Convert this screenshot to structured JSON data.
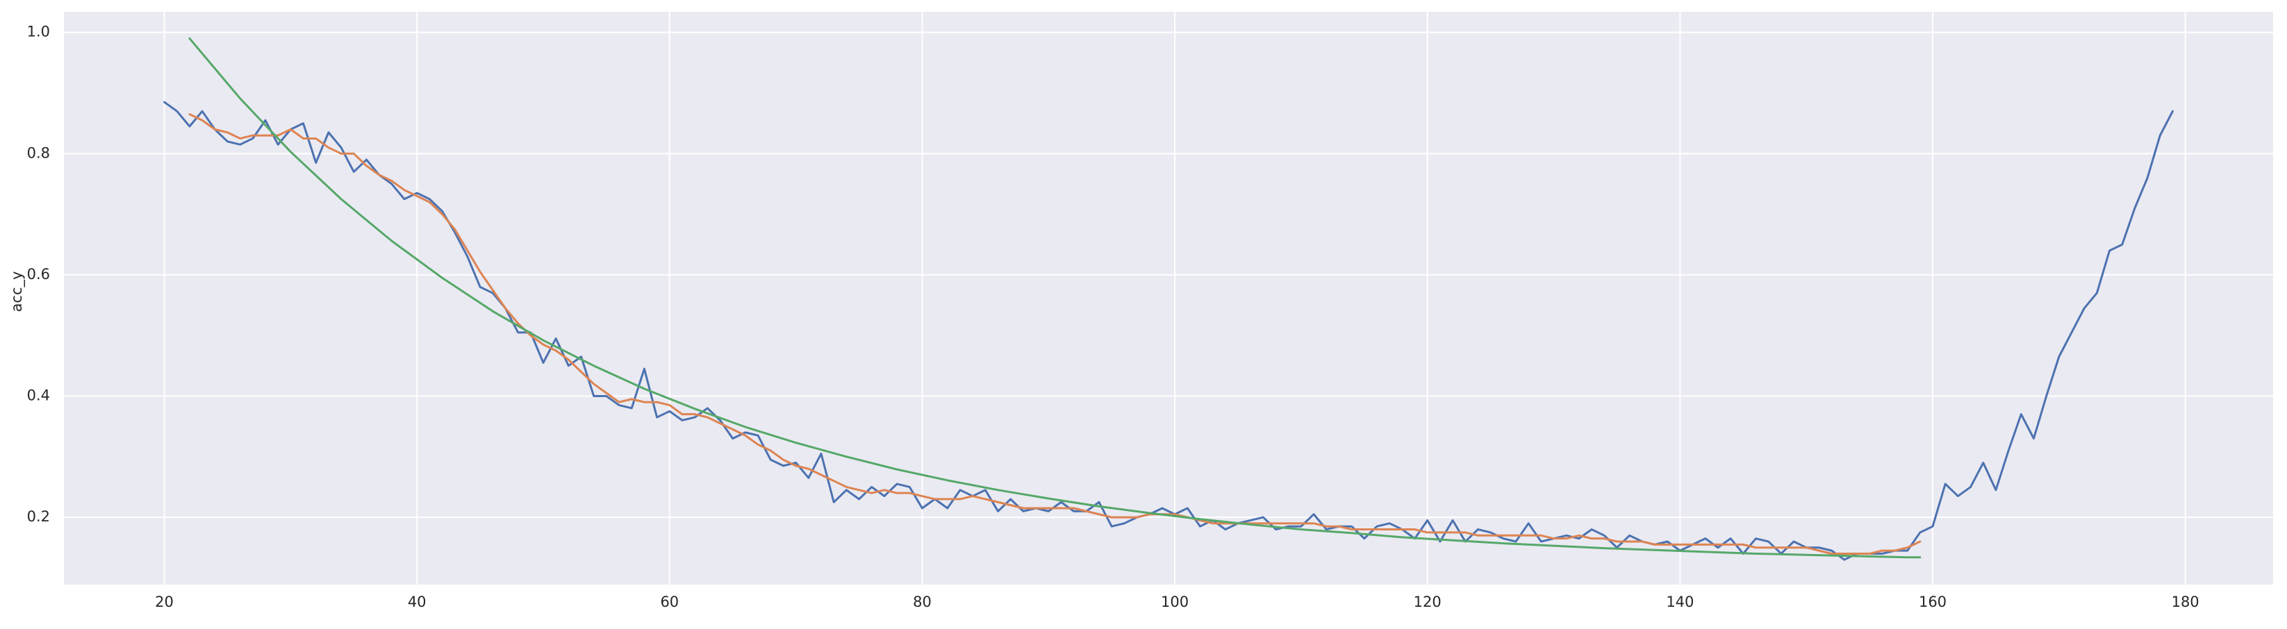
{
  "chart_data": {
    "type": "line",
    "ylabel": "acc_y",
    "xlim": [
      12.05,
      186.95
    ],
    "ylim": [
      0.089,
      1.034
    ],
    "xticks": [
      20,
      40,
      60,
      80,
      100,
      120,
      140,
      160,
      180
    ],
    "yticks": [
      0.2,
      0.4,
      0.6,
      0.8,
      {
        "value": 1,
        "label": "1.0"
      }
    ],
    "grid": true,
    "series": [
      {
        "color": "#4c72b0",
        "x": [
          20,
          21,
          22,
          23,
          24,
          25,
          26,
          27,
          28,
          29,
          30,
          31,
          32,
          33,
          34,
          35,
          36,
          37,
          38,
          39,
          40,
          41,
          42,
          43,
          44,
          45,
          46,
          47,
          48,
          49,
          50,
          51,
          52,
          53,
          54,
          55,
          56,
          57,
          58,
          59,
          60,
          61,
          62,
          63,
          64,
          65,
          66,
          67,
          68,
          69,
          70,
          71,
          72,
          73,
          74,
          75,
          76,
          77,
          78,
          79,
          80,
          81,
          82,
          83,
          84,
          85,
          86,
          87,
          88,
          89,
          90,
          91,
          92,
          93,
          94,
          95,
          96,
          97,
          98,
          99,
          100,
          101,
          102,
          103,
          104,
          105,
          106,
          107,
          108,
          109,
          110,
          111,
          112,
          113,
          114,
          115,
          116,
          117,
          118,
          119,
          120,
          121,
          122,
          123,
          124,
          125,
          126,
          127,
          128,
          129,
          130,
          131,
          132,
          133,
          134,
          135,
          136,
          137,
          138,
          139,
          140,
          141,
          142,
          143,
          144,
          145,
          146,
          147,
          148,
          149,
          150,
          151,
          152,
          153,
          154,
          155,
          156,
          157,
          158,
          159,
          160,
          161,
          162,
          163,
          164,
          165,
          166,
          167,
          168,
          169,
          170,
          171,
          172,
          173,
          174,
          175,
          176,
          177,
          178,
          179
        ],
        "values": [
          0.885,
          0.87,
          0.845,
          0.87,
          0.84,
          0.82,
          0.815,
          0.825,
          0.855,
          0.815,
          0.84,
          0.85,
          0.785,
          0.835,
          0.81,
          0.77,
          0.79,
          0.765,
          0.75,
          0.725,
          0.735,
          0.725,
          0.705,
          0.67,
          0.63,
          0.58,
          0.57,
          0.545,
          0.505,
          0.505,
          0.455,
          0.495,
          0.45,
          0.465,
          0.4,
          0.4,
          0.385,
          0.38,
          0.445,
          0.365,
          0.375,
          0.36,
          0.365,
          0.38,
          0.36,
          0.33,
          0.34,
          0.335,
          0.295,
          0.285,
          0.29,
          0.265,
          0.305,
          0.225,
          0.245,
          0.23,
          0.25,
          0.235,
          0.255,
          0.25,
          0.215,
          0.23,
          0.215,
          0.245,
          0.235,
          0.245,
          0.21,
          0.23,
          0.21,
          0.215,
          0.21,
          0.225,
          0.21,
          0.21,
          0.225,
          0.185,
          0.19,
          0.2,
          0.205,
          0.215,
          0.205,
          0.215,
          0.185,
          0.195,
          0.18,
          0.19,
          0.195,
          0.2,
          0.18,
          0.185,
          0.185,
          0.205,
          0.18,
          0.185,
          0.185,
          0.165,
          0.185,
          0.19,
          0.18,
          0.165,
          0.195,
          0.16,
          0.195,
          0.16,
          0.18,
          0.175,
          0.165,
          0.16,
          0.19,
          0.16,
          0.165,
          0.17,
          0.165,
          0.18,
          0.17,
          0.15,
          0.17,
          0.16,
          0.155,
          0.16,
          0.145,
          0.155,
          0.165,
          0.15,
          0.165,
          0.14,
          0.165,
          0.16,
          0.14,
          0.16,
          0.15,
          0.15,
          0.145,
          0.13,
          0.14,
          0.14,
          0.14,
          0.145,
          0.145,
          0.175,
          0.185,
          0.255,
          0.235,
          0.25,
          0.29,
          0.245,
          0.31,
          0.37,
          0.33,
          0.4,
          0.465,
          0.505,
          0.545,
          0.57,
          0.64,
          0.65,
          0.71,
          0.76,
          0.83,
          0.87
        ]
      },
      {
        "color": "#dd8452",
        "x": [
          22,
          23,
          24,
          25,
          26,
          27,
          28,
          29,
          30,
          31,
          32,
          33,
          34,
          35,
          36,
          37,
          38,
          39,
          40,
          41,
          42,
          43,
          44,
          45,
          46,
          47,
          48,
          49,
          50,
          51,
          52,
          53,
          54,
          55,
          56,
          57,
          58,
          59,
          60,
          61,
          62,
          63,
          64,
          65,
          66,
          67,
          68,
          69,
          70,
          71,
          72,
          73,
          74,
          75,
          76,
          77,
          78,
          79,
          80,
          81,
          82,
          83,
          84,
          85,
          86,
          87,
          88,
          89,
          90,
          91,
          92,
          93,
          94,
          95,
          96,
          97,
          98,
          99,
          100,
          101,
          102,
          103,
          104,
          105,
          106,
          107,
          108,
          109,
          110,
          111,
          112,
          113,
          114,
          115,
          116,
          117,
          118,
          119,
          120,
          121,
          122,
          123,
          124,
          125,
          126,
          127,
          128,
          129,
          130,
          131,
          132,
          133,
          134,
          135,
          136,
          137,
          138,
          139,
          140,
          141,
          142,
          143,
          144,
          145,
          146,
          147,
          148,
          149,
          150,
          151,
          152,
          153,
          154,
          155,
          156,
          157,
          158,
          159
        ],
        "values": [
          0.865,
          0.855,
          0.84,
          0.835,
          0.825,
          0.83,
          0.83,
          0.83,
          0.84,
          0.825,
          0.825,
          0.81,
          0.8,
          0.8,
          0.78,
          0.765,
          0.755,
          0.74,
          0.73,
          0.72,
          0.7,
          0.675,
          0.64,
          0.605,
          0.575,
          0.545,
          0.52,
          0.5,
          0.485,
          0.475,
          0.46,
          0.44,
          0.42,
          0.405,
          0.39,
          0.395,
          0.39,
          0.39,
          0.385,
          0.37,
          0.37,
          0.365,
          0.355,
          0.345,
          0.335,
          0.32,
          0.31,
          0.295,
          0.285,
          0.28,
          0.27,
          0.26,
          0.25,
          0.245,
          0.24,
          0.245,
          0.24,
          0.24,
          0.235,
          0.23,
          0.23,
          0.23,
          0.235,
          0.23,
          0.225,
          0.22,
          0.215,
          0.215,
          0.215,
          0.215,
          0.215,
          0.21,
          0.205,
          0.2,
          0.2,
          0.2,
          0.205,
          0.205,
          0.205,
          0.2,
          0.195,
          0.19,
          0.19,
          0.19,
          0.19,
          0.19,
          0.19,
          0.19,
          0.19,
          0.19,
          0.185,
          0.185,
          0.18,
          0.18,
          0.18,
          0.18,
          0.18,
          0.18,
          0.175,
          0.175,
          0.175,
          0.175,
          0.17,
          0.17,
          0.17,
          0.17,
          0.17,
          0.17,
          0.165,
          0.165,
          0.17,
          0.165,
          0.165,
          0.16,
          0.16,
          0.16,
          0.155,
          0.155,
          0.155,
          0.155,
          0.155,
          0.155,
          0.155,
          0.155,
          0.15,
          0.15,
          0.15,
          0.15,
          0.15,
          0.145,
          0.14,
          0.14,
          0.14,
          0.14,
          0.145,
          0.145,
          0.15,
          0.16
        ]
      },
      {
        "color": "#55a868",
        "x": [
          22,
          26,
          30,
          34,
          38,
          42,
          46,
          50,
          54,
          58,
          62,
          66,
          70,
          74,
          78,
          82,
          86,
          90,
          94,
          98,
          102,
          106,
          110,
          114,
          118,
          122,
          126,
          130,
          134,
          138,
          142,
          146,
          150,
          154,
          158,
          159
        ],
        "values": [
          0.99,
          0.891,
          0.803,
          0.725,
          0.656,
          0.595,
          0.54,
          0.492,
          0.45,
          0.412,
          0.379,
          0.349,
          0.323,
          0.3,
          0.279,
          0.261,
          0.245,
          0.231,
          0.218,
          0.207,
          0.197,
          0.188,
          0.18,
          0.174,
          0.167,
          0.162,
          0.157,
          0.153,
          0.149,
          0.146,
          0.143,
          0.14,
          0.138,
          0.136,
          0.134,
          0.134
        ]
      }
    ]
  }
}
